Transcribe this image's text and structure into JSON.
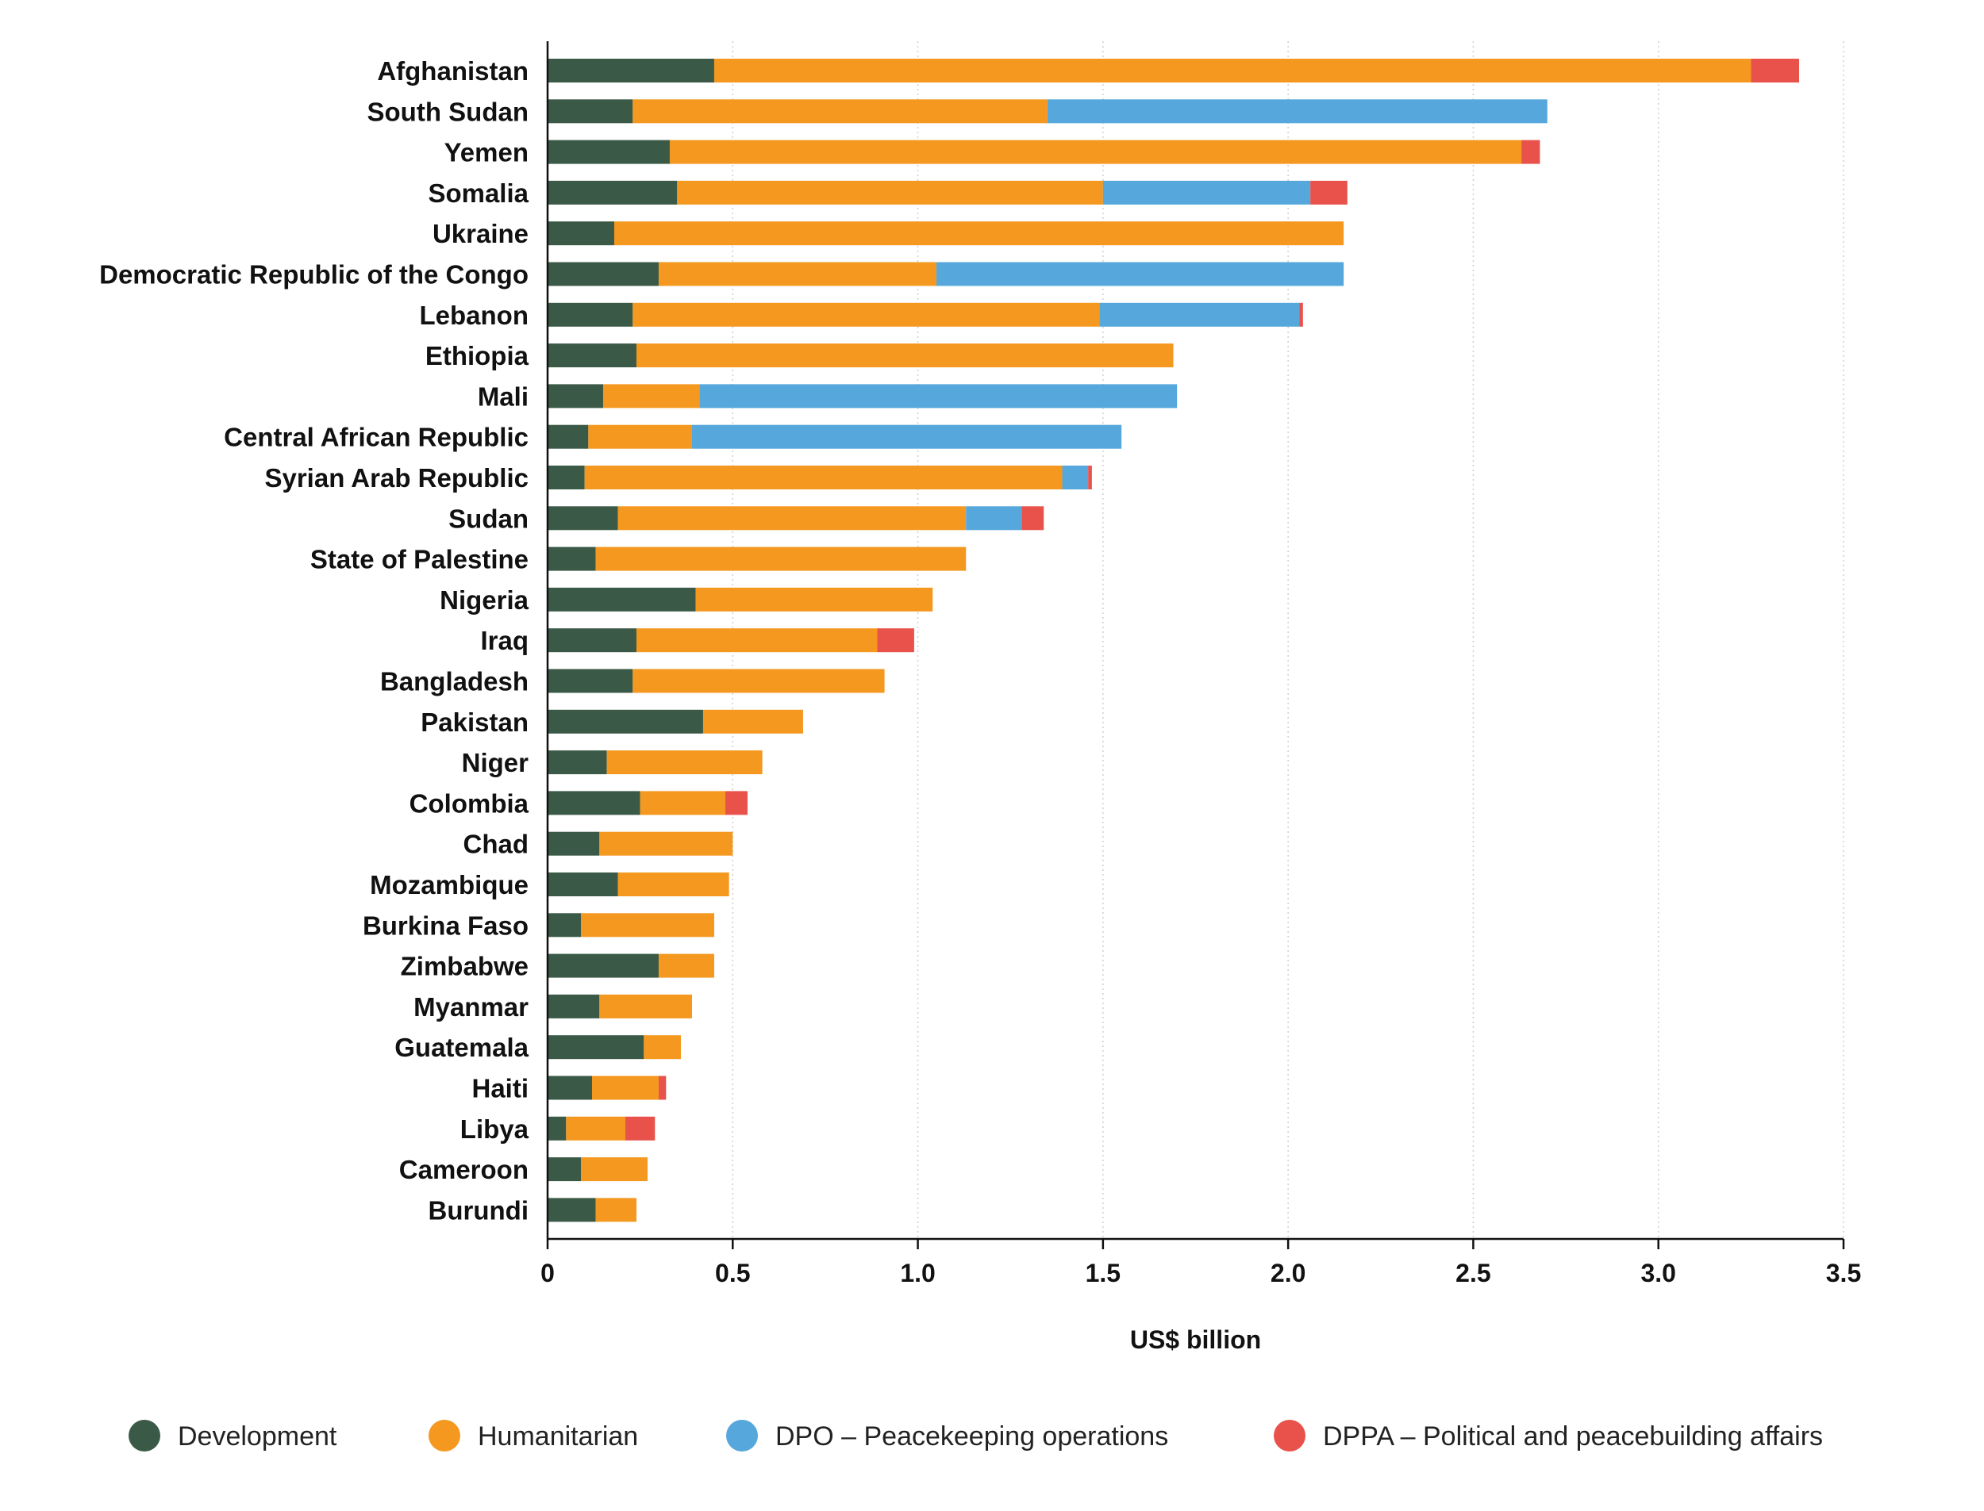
{
  "chart_data": {
    "type": "bar",
    "orientation": "horizontal",
    "stacked": true,
    "xlabel": "US$ billion",
    "ylabel": "",
    "xlim": [
      0,
      3.5
    ],
    "x_ticks": [
      "0",
      "0.5",
      "1.0",
      "1.5",
      "2.0",
      "2.5",
      "3.0",
      "3.5"
    ],
    "x_tick_values": [
      0,
      0.5,
      1.0,
      1.5,
      2.0,
      2.5,
      3.0,
      3.5
    ],
    "grid": "vertical dotted",
    "legend_position": "bottom",
    "categories": [
      "Afghanistan",
      "South Sudan",
      "Yemen",
      "Somalia",
      "Ukraine",
      "Democratic Republic of the Congo",
      "Lebanon",
      "Ethiopia",
      "Mali",
      "Central African Republic",
      "Syrian Arab Republic",
      "Sudan",
      "State of Palestine",
      "Nigeria",
      "Iraq",
      "Bangladesh",
      "Pakistan",
      "Niger",
      "Colombia",
      "Chad",
      "Mozambique",
      "Burkina Faso",
      "Zimbabwe",
      "Myanmar",
      "Guatemala",
      "Haiti",
      "Libya",
      "Cameroon",
      "Burundi"
    ],
    "series": [
      {
        "name": "Development",
        "color": "#3a5a47",
        "values": [
          0.45,
          0.23,
          0.33,
          0.35,
          0.18,
          0.3,
          0.23,
          0.24,
          0.15,
          0.11,
          0.1,
          0.19,
          0.13,
          0.4,
          0.24,
          0.23,
          0.42,
          0.16,
          0.25,
          0.14,
          0.19,
          0.09,
          0.3,
          0.14,
          0.26,
          0.12,
          0.05,
          0.09,
          0.13
        ]
      },
      {
        "name": "Humanitarian",
        "color": "#f4981f",
        "values": [
          2.8,
          1.12,
          2.3,
          1.15,
          1.97,
          0.75,
          1.26,
          1.45,
          0.26,
          0.28,
          1.29,
          0.94,
          1.0,
          0.64,
          0.65,
          0.68,
          0.27,
          0.42,
          0.23,
          0.36,
          0.3,
          0.36,
          0.15,
          0.25,
          0.1,
          0.18,
          0.16,
          0.18,
          0.11
        ]
      },
      {
        "name": "DPO – Peacekeeping operations",
        "color": "#55a7dc",
        "values": [
          0,
          1.35,
          0,
          0.56,
          0,
          1.1,
          0.54,
          0,
          1.29,
          1.16,
          0.07,
          0.15,
          0,
          0,
          0,
          0,
          0,
          0,
          0,
          0,
          0,
          0,
          0,
          0,
          0,
          0,
          0,
          0,
          0
        ]
      },
      {
        "name": "DPPA – Political and peacebuilding affairs",
        "color": "#e8524a",
        "values": [
          0.13,
          0,
          0.05,
          0.1,
          0,
          0,
          0.01,
          0,
          0,
          0,
          0.01,
          0.06,
          0,
          0,
          0.1,
          0,
          0,
          0,
          0.06,
          0,
          0,
          0,
          0,
          0,
          0,
          0.02,
          0.08,
          0,
          0
        ]
      }
    ]
  }
}
